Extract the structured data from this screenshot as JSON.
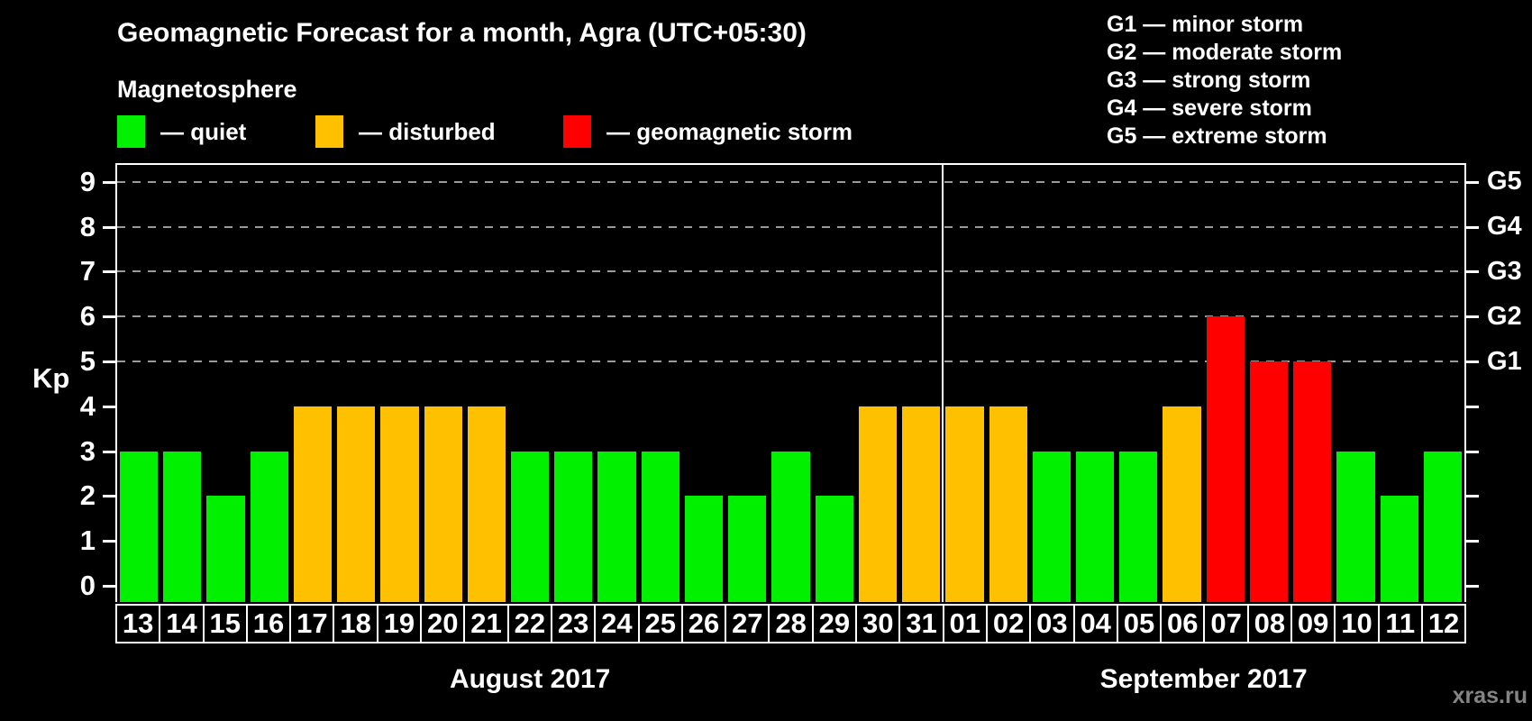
{
  "title": "Geomagnetic Forecast for a month, Agra (UTC+05:30)",
  "legend_title": "Magnetosphere",
  "legend": [
    {
      "name": "quiet",
      "label": "— quiet",
      "color": "#00f000"
    },
    {
      "name": "disturbed",
      "label": "— disturbed",
      "color": "#ffc000"
    },
    {
      "name": "storm",
      "label": "— geomagnetic storm",
      "color": "#ff0000"
    }
  ],
  "g_scale": [
    "G1 — minor storm",
    "G2 — moderate storm",
    "G3 — strong storm",
    "G4 — severe storm",
    "G5 — extreme storm"
  ],
  "watermark": "xras.ru",
  "chart_data": {
    "type": "bar",
    "title": "Geomagnetic Forecast for a month, Agra (UTC+05:30)",
    "ylabel": "Kp",
    "ylim": [
      0,
      9
    ],
    "yticks": [
      0,
      1,
      2,
      3,
      4,
      5,
      6,
      7,
      8,
      9
    ],
    "gridlines_kp": [
      5,
      6,
      7,
      8,
      9
    ],
    "grid": "dashed, horizontal, only at Kp 5-9",
    "legend_position": "top",
    "right_axis_labels": {
      "5": "G1",
      "6": "G2",
      "7": "G3",
      "8": "G4",
      "9": "G5"
    },
    "colors": {
      "quiet": "#00f000",
      "disturbed": "#ffc000",
      "storm": "#ff0000"
    },
    "months": [
      {
        "label": "August 2017",
        "count": 19
      },
      {
        "label": "September 2017",
        "count": 12
      }
    ],
    "days": [
      {
        "label": "13",
        "kp": 3,
        "status": "quiet"
      },
      {
        "label": "14",
        "kp": 3,
        "status": "quiet"
      },
      {
        "label": "15",
        "kp": 2,
        "status": "quiet"
      },
      {
        "label": "16",
        "kp": 3,
        "status": "quiet"
      },
      {
        "label": "17",
        "kp": 4,
        "status": "disturbed"
      },
      {
        "label": "18",
        "kp": 4,
        "status": "disturbed"
      },
      {
        "label": "19",
        "kp": 4,
        "status": "disturbed"
      },
      {
        "label": "20",
        "kp": 4,
        "status": "disturbed"
      },
      {
        "label": "21",
        "kp": 4,
        "status": "disturbed"
      },
      {
        "label": "22",
        "kp": 3,
        "status": "quiet"
      },
      {
        "label": "23",
        "kp": 3,
        "status": "quiet"
      },
      {
        "label": "24",
        "kp": 3,
        "status": "quiet"
      },
      {
        "label": "25",
        "kp": 3,
        "status": "quiet"
      },
      {
        "label": "26",
        "kp": 2,
        "status": "quiet"
      },
      {
        "label": "27",
        "kp": 2,
        "status": "quiet"
      },
      {
        "label": "28",
        "kp": 3,
        "status": "quiet"
      },
      {
        "label": "29",
        "kp": 2,
        "status": "quiet"
      },
      {
        "label": "30",
        "kp": 4,
        "status": "disturbed"
      },
      {
        "label": "31",
        "kp": 4,
        "status": "disturbed"
      },
      {
        "label": "01",
        "kp": 4,
        "status": "disturbed"
      },
      {
        "label": "02",
        "kp": 4,
        "status": "disturbed"
      },
      {
        "label": "03",
        "kp": 3,
        "status": "quiet"
      },
      {
        "label": "04",
        "kp": 3,
        "status": "quiet"
      },
      {
        "label": "05",
        "kp": 3,
        "status": "quiet"
      },
      {
        "label": "06",
        "kp": 4,
        "status": "disturbed"
      },
      {
        "label": "07",
        "kp": 6,
        "status": "storm"
      },
      {
        "label": "08",
        "kp": 5,
        "status": "storm"
      },
      {
        "label": "09",
        "kp": 5,
        "status": "storm"
      },
      {
        "label": "10",
        "kp": 3,
        "status": "quiet"
      },
      {
        "label": "11",
        "kp": 2,
        "status": "quiet"
      },
      {
        "label": "12",
        "kp": 3,
        "status": "quiet"
      }
    ]
  }
}
